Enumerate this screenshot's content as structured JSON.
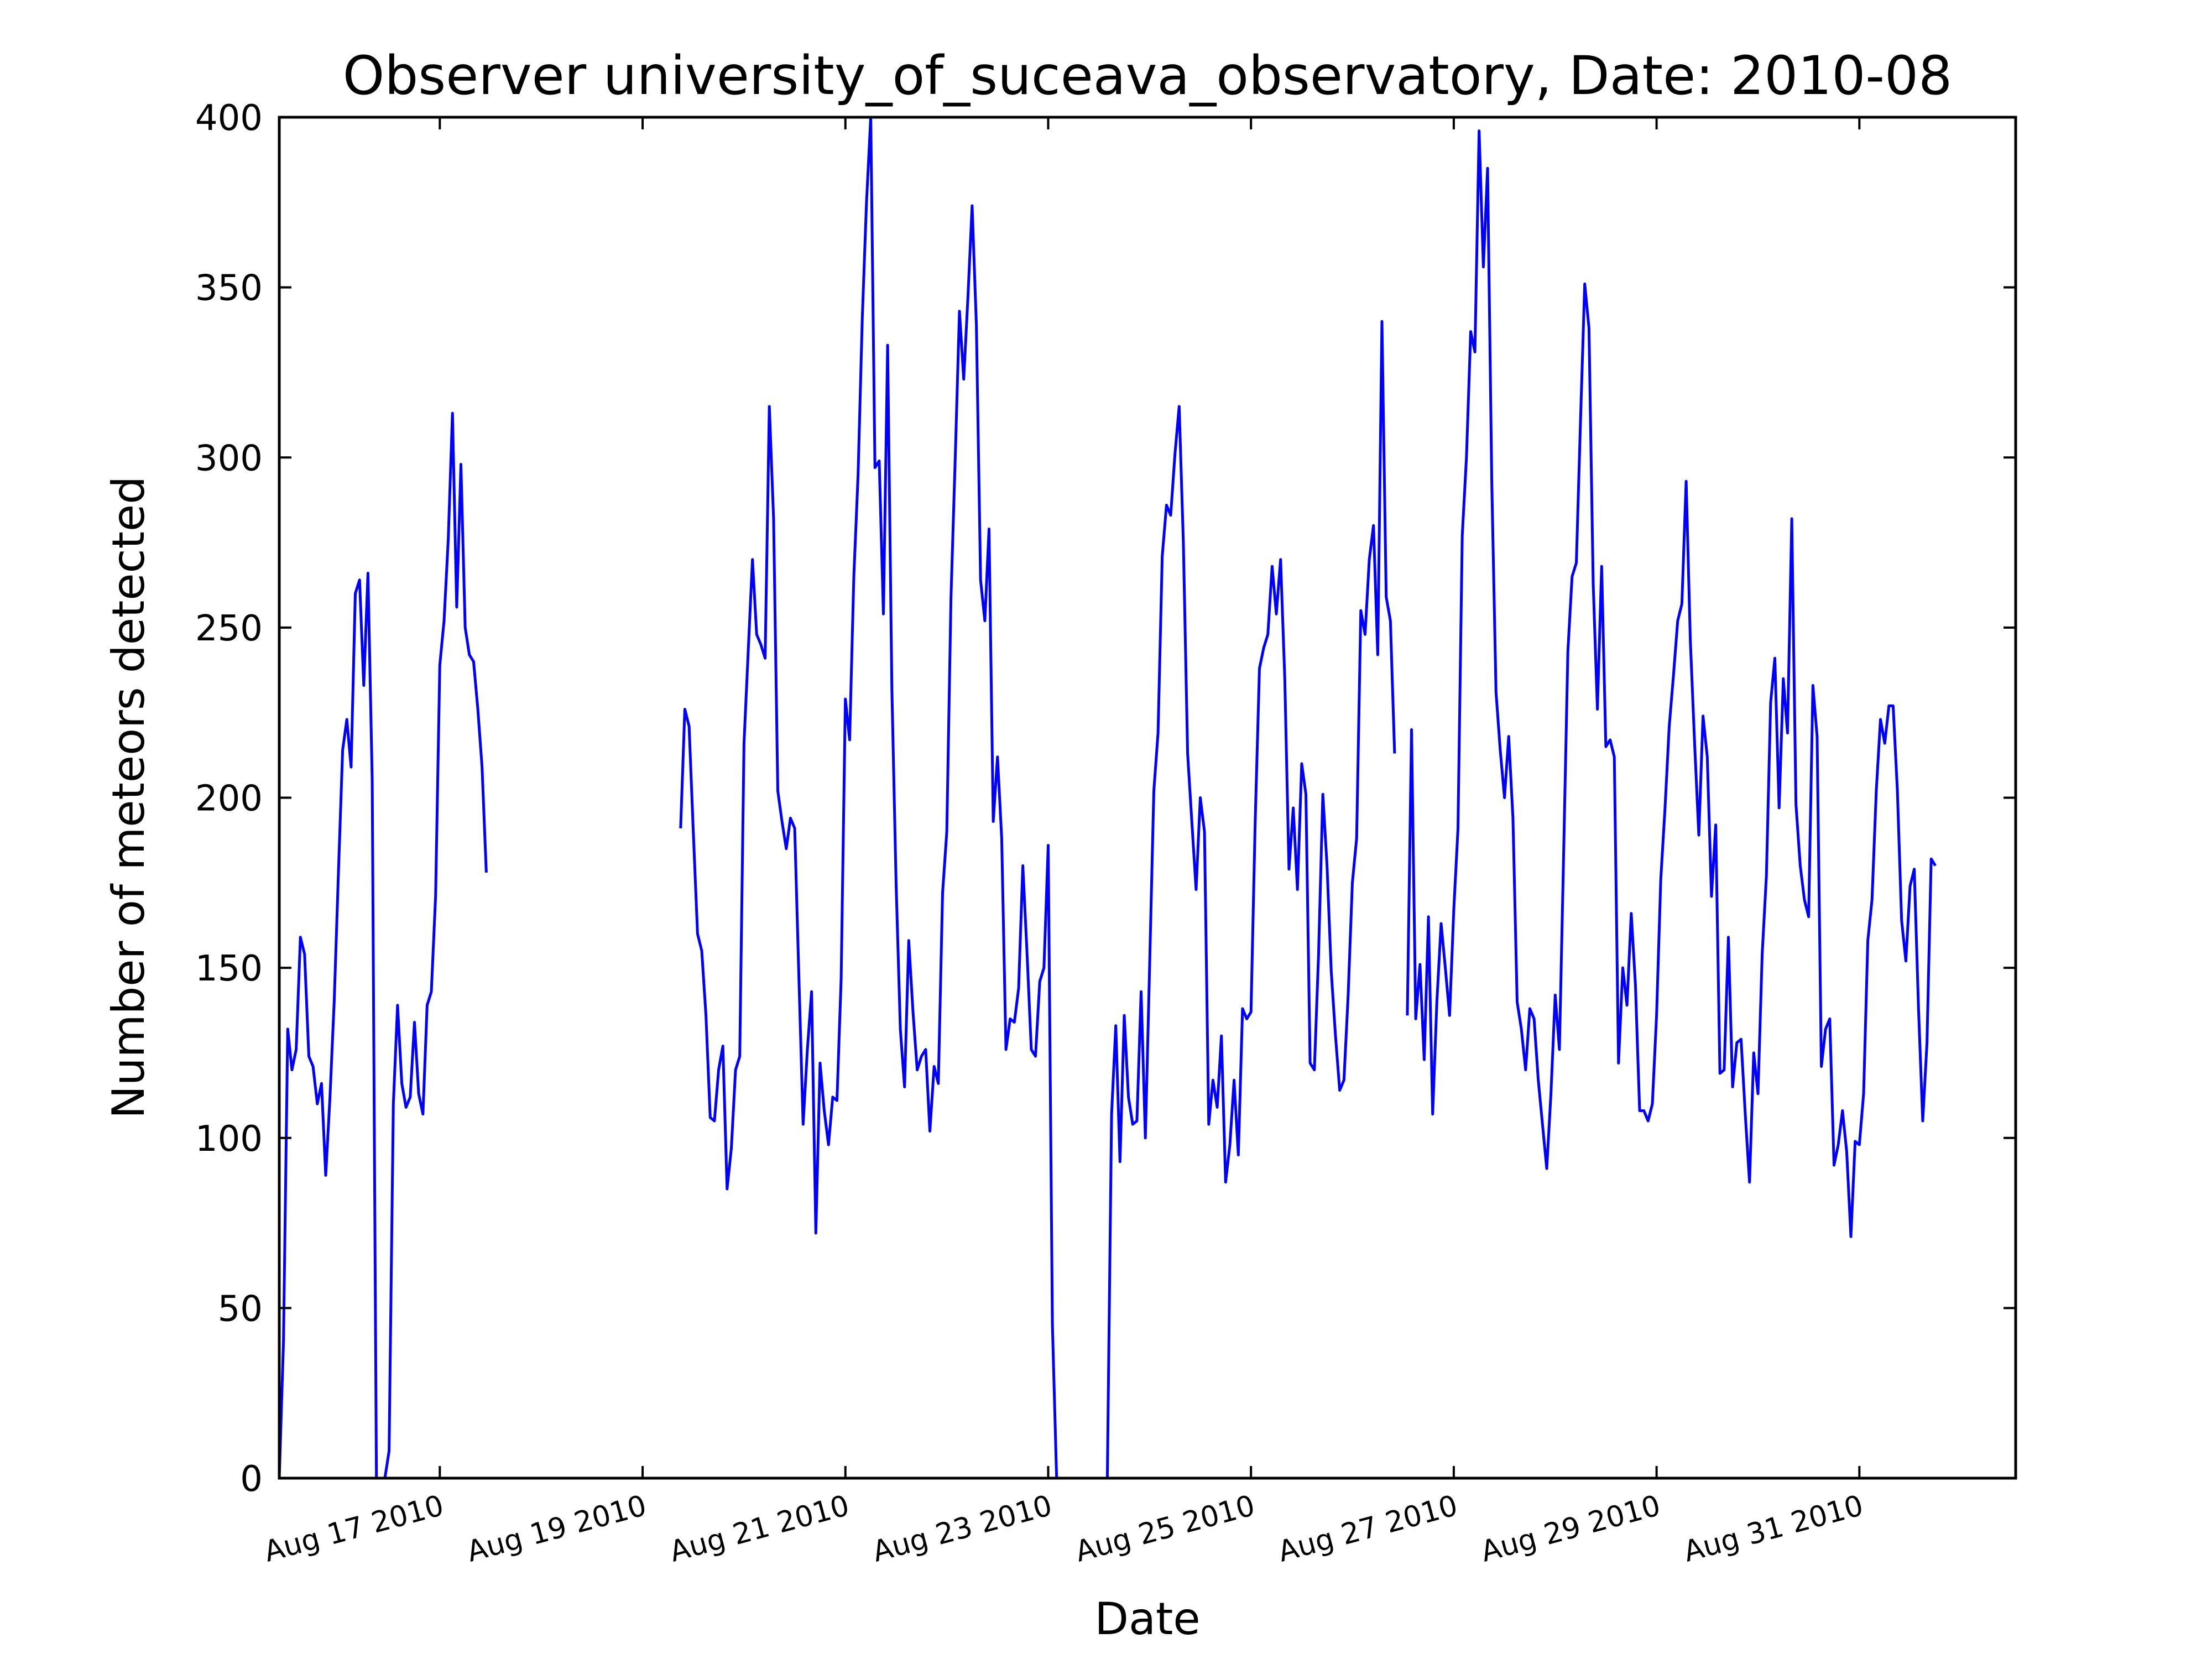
{
  "chart_data": {
    "type": "line",
    "title": "Observer university_of_suceava_observatory, Date: 2010-08",
    "xlabel": "Date",
    "ylabel": "Number of meteors detected",
    "ylim": [
      0,
      400
    ],
    "xlim": [
      "2010-08-15T10:00",
      "2010-09-01T13:00"
    ],
    "yticks": [
      0,
      50,
      100,
      150,
      200,
      250,
      300,
      350,
      400
    ],
    "xticks": [
      {
        "date": "2010-08-17",
        "label": "Aug 17 2010"
      },
      {
        "date": "2010-08-19",
        "label": "Aug 19 2010"
      },
      {
        "date": "2010-08-21",
        "label": "Aug 21 2010"
      },
      {
        "date": "2010-08-23",
        "label": "Aug 23 2010"
      },
      {
        "date": "2010-08-25",
        "label": "Aug 25 2010"
      },
      {
        "date": "2010-08-27",
        "label": "Aug 27 2010"
      },
      {
        "date": "2010-08-29",
        "label": "Aug 29 2010"
      },
      {
        "date": "2010-08-31",
        "label": "Aug 31 2010"
      }
    ],
    "grid": false,
    "legend": "none",
    "color": "#0000ff",
    "segments": [
      {
        "start": "2010-08-15T10:00",
        "values": [
          0,
          40,
          132,
          120,
          126,
          159,
          154,
          124,
          121,
          110,
          116,
          89,
          112,
          140,
          178,
          214,
          223,
          209,
          260,
          264,
          233,
          266,
          205,
          0,
          0,
          0,
          8,
          110,
          139,
          116,
          109,
          112,
          134,
          113,
          107,
          139,
          143,
          171,
          239,
          252,
          276,
          313,
          256,
          298,
          250,
          242,
          240,
          226,
          209,
          178
        ]
      },
      {
        "start": "2010-08-19T09:00",
        "values": [
          191,
          226,
          221,
          190,
          160,
          155,
          136,
          106,
          105,
          120,
          127,
          85,
          97,
          120,
          124,
          216,
          243,
          270,
          248,
          245,
          241,
          315,
          282,
          202,
          193,
          185,
          194,
          191,
          147,
          104,
          126,
          143,
          72,
          122,
          108,
          98,
          112,
          111,
          147,
          229,
          217,
          265,
          295,
          341,
          375,
          400,
          297,
          299,
          254,
          333,
          232,
          175,
          132,
          115,
          158,
          137,
          120,
          124,
          126,
          102,
          121,
          116,
          172,
          190,
          259,
          300,
          343,
          323,
          347,
          374,
          339,
          264,
          252,
          279,
          193,
          212,
          188,
          126,
          135,
          134,
          144,
          180,
          154,
          126,
          124,
          146,
          150,
          186,
          45,
          0,
          0,
          0,
          0,
          0,
          0,
          0,
          0,
          0,
          0,
          0,
          0,
          0,
          107,
          133,
          93,
          136,
          112,
          104,
          105,
          143,
          100,
          150,
          202,
          219,
          271,
          286,
          283,
          301,
          315,
          275,
          213,
          193,
          173,
          200,
          190,
          104,
          117,
          109,
          130,
          87,
          98,
          117,
          95,
          138,
          135,
          137,
          193,
          238,
          244,
          248,
          268,
          254,
          270,
          235,
          179,
          197,
          173,
          210,
          201,
          122,
          120,
          154,
          201,
          180,
          149,
          130,
          114,
          117,
          142,
          175,
          188,
          255,
          248,
          270,
          280,
          242,
          340,
          259,
          252,
          213
        ]
      },
      {
        "start": "2010-08-26T13:00",
        "values": [
          136,
          220,
          135,
          151,
          123,
          165,
          107,
          140,
          163,
          150,
          136,
          167,
          191,
          277,
          300,
          337,
          331,
          396,
          356,
          385,
          292,
          231,
          214,
          200,
          218,
          194,
          140,
          132,
          120,
          138,
          135,
          117,
          104,
          91,
          113,
          142,
          126,
          183,
          243,
          265,
          269,
          311,
          351,
          338,
          263,
          226,
          268,
          215,
          217,
          212,
          122,
          150,
          139,
          166,
          145,
          108,
          108,
          105,
          110,
          136,
          176,
          197,
          221,
          236,
          252,
          257,
          293,
          246,
          216,
          189,
          224,
          212,
          171,
          192,
          119,
          120,
          159,
          115,
          128,
          129,
          107,
          87,
          125,
          113,
          154,
          177,
          228,
          241,
          197,
          235,
          219,
          282,
          198,
          180,
          170,
          165,
          233,
          218,
          121,
          132,
          135,
          92,
          98,
          108,
          96,
          71,
          99,
          98,
          113,
          158,
          170,
          202,
          223,
          216,
          227,
          227,
          202,
          164,
          152,
          174,
          179,
          138,
          105,
          128,
          182,
          180
        ]
      }
    ]
  }
}
